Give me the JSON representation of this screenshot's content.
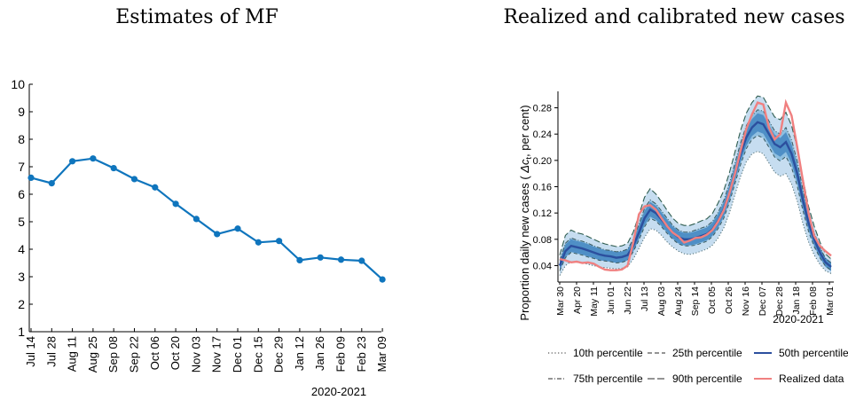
{
  "chart_data": [
    {
      "type": "line",
      "title": "Estimates of MF",
      "xlabel": "2020-2021",
      "ylabel": "",
      "categories": [
        "Jul 14",
        "Jul 28",
        "Aug 11",
        "Aug 25",
        "Sep 08",
        "Sep 22",
        "Oct 06",
        "Oct 20",
        "Nov 03",
        "Nov 17",
        "Dec 01",
        "Dec 15",
        "Dec 29",
        "Jan 12",
        "Jan 26",
        "Feb 09",
        "Feb 23",
        "Mar 09"
      ],
      "values": [
        6.6,
        6.4,
        7.2,
        7.3,
        6.95,
        6.55,
        6.25,
        5.65,
        5.1,
        4.55,
        4.75,
        4.25,
        4.3,
        3.6,
        3.7,
        3.62,
        3.58,
        2.9
      ],
      "ylim": [
        1,
        10
      ],
      "yticks": [
        1,
        2,
        3,
        4,
        5,
        6,
        7,
        8,
        9,
        10
      ],
      "grid": false,
      "color": "#0f75bd"
    },
    {
      "type": "area",
      "title": "Realized and calibrated new cases",
      "ylabel_html_prefix": "Proportion daily new cases ( ",
      "ylabel_symbol": "Δc",
      "ylabel_sub": "t",
      "ylabel_suffix": ", per cent)",
      "xlabel": "2020-2021",
      "x_ticks": [
        "Mar 30",
        "Apr 20",
        "May 11",
        "Jun 01",
        "Jun 22",
        "Jul 13",
        "Aug 03",
        "Aug 24",
        "Sep 14",
        "Oct 05",
        "Oct 26",
        "Nov 16",
        "Dec 07",
        "Dec 28",
        "Jan 18",
        "Feb 08",
        "Mar 01"
      ],
      "yticks": [
        0.04,
        0.08,
        0.12,
        0.16,
        0.2,
        0.24,
        0.28
      ],
      "ylim": [
        0.015,
        0.305
      ],
      "x_week": [
        0,
        1,
        2,
        3,
        4,
        5,
        6,
        7,
        8,
        9,
        10,
        11,
        12,
        13,
        14,
        15,
        16,
        17,
        18,
        19,
        20,
        21,
        22,
        23,
        24,
        25,
        26,
        27,
        28,
        29,
        30,
        31,
        32,
        33,
        34,
        35,
        36,
        37,
        38,
        39,
        40,
        41,
        42,
        43,
        44,
        45,
        46,
        47,
        48
      ],
      "median": [
        0.04,
        0.062,
        0.07,
        0.068,
        0.066,
        0.063,
        0.06,
        0.057,
        0.055,
        0.054,
        0.052,
        0.053,
        0.056,
        0.07,
        0.09,
        0.112,
        0.125,
        0.12,
        0.11,
        0.1,
        0.09,
        0.083,
        0.08,
        0.08,
        0.082,
        0.085,
        0.088,
        0.095,
        0.108,
        0.125,
        0.15,
        0.18,
        0.21,
        0.235,
        0.25,
        0.258,
        0.255,
        0.24,
        0.225,
        0.22,
        0.228,
        0.21,
        0.18,
        0.14,
        0.105,
        0.08,
        0.06,
        0.045,
        0.038
      ],
      "p10": [
        0.025,
        0.04,
        0.046,
        0.045,
        0.044,
        0.042,
        0.04,
        0.038,
        0.037,
        0.036,
        0.035,
        0.036,
        0.038,
        0.05,
        0.066,
        0.083,
        0.096,
        0.094,
        0.086,
        0.076,
        0.068,
        0.062,
        0.058,
        0.057,
        0.059,
        0.062,
        0.065,
        0.071,
        0.082,
        0.097,
        0.12,
        0.148,
        0.176,
        0.198,
        0.21,
        0.214,
        0.21,
        0.196,
        0.182,
        0.176,
        0.18,
        0.164,
        0.138,
        0.104,
        0.076,
        0.056,
        0.042,
        0.032,
        0.028
      ],
      "p25": [
        0.032,
        0.052,
        0.06,
        0.058,
        0.056,
        0.053,
        0.051,
        0.048,
        0.047,
        0.046,
        0.044,
        0.045,
        0.048,
        0.061,
        0.079,
        0.099,
        0.112,
        0.108,
        0.099,
        0.089,
        0.08,
        0.073,
        0.07,
        0.07,
        0.071,
        0.074,
        0.077,
        0.084,
        0.096,
        0.112,
        0.136,
        0.165,
        0.194,
        0.218,
        0.232,
        0.238,
        0.234,
        0.22,
        0.205,
        0.199,
        0.206,
        0.189,
        0.161,
        0.124,
        0.092,
        0.069,
        0.052,
        0.039,
        0.033
      ],
      "p75": [
        0.048,
        0.074,
        0.082,
        0.079,
        0.077,
        0.074,
        0.07,
        0.067,
        0.064,
        0.063,
        0.061,
        0.062,
        0.065,
        0.08,
        0.103,
        0.127,
        0.14,
        0.134,
        0.123,
        0.112,
        0.101,
        0.094,
        0.091,
        0.091,
        0.094,
        0.097,
        0.1,
        0.107,
        0.121,
        0.139,
        0.165,
        0.196,
        0.227,
        0.253,
        0.268,
        0.277,
        0.275,
        0.26,
        0.245,
        0.24,
        0.25,
        0.231,
        0.199,
        0.156,
        0.117,
        0.09,
        0.068,
        0.051,
        0.044
      ],
      "p90": [
        0.056,
        0.086,
        0.094,
        0.09,
        0.088,
        0.084,
        0.08,
        0.076,
        0.073,
        0.071,
        0.069,
        0.07,
        0.074,
        0.091,
        0.117,
        0.144,
        0.157,
        0.149,
        0.137,
        0.124,
        0.112,
        0.104,
        0.101,
        0.101,
        0.104,
        0.108,
        0.111,
        0.119,
        0.135,
        0.154,
        0.181,
        0.213,
        0.246,
        0.272,
        0.288,
        0.298,
        0.296,
        0.281,
        0.266,
        0.262,
        0.273,
        0.253,
        0.219,
        0.173,
        0.13,
        0.1,
        0.076,
        0.058,
        0.05
      ],
      "realized": [
        0.05,
        0.048,
        0.045,
        0.046,
        0.044,
        0.045,
        0.043,
        0.038,
        0.034,
        0.033,
        0.033,
        0.034,
        0.04,
        0.075,
        0.118,
        0.13,
        0.132,
        0.125,
        0.112,
        0.1,
        0.09,
        0.084,
        0.075,
        0.078,
        0.082,
        0.083,
        0.087,
        0.094,
        0.107,
        0.124,
        0.15,
        0.18,
        0.215,
        0.248,
        0.27,
        0.288,
        0.285,
        0.25,
        0.232,
        0.24,
        0.288,
        0.268,
        0.22,
        0.17,
        0.12,
        0.085,
        0.07,
        0.062,
        0.055
      ],
      "legend": [
        {
          "label": "10th percentile",
          "style": "dotted",
          "color": "#555555"
        },
        {
          "label": "25th percentile",
          "style": "dashed",
          "color": "#555555"
        },
        {
          "label": "50th percentile",
          "style": "solid",
          "color": "#2c4f9e"
        },
        {
          "label": "75th percentile",
          "style": "dashdot",
          "color": "#555555"
        },
        {
          "label": "90th percentile",
          "style": "longdash",
          "color": "#555555"
        },
        {
          "label": "Realized data",
          "style": "solid",
          "color": "#f08080"
        }
      ],
      "legend_position": "bottom",
      "colors": {
        "band_outer": "#c6ddf0",
        "band_mid": "#8fbfe0",
        "band_inner": "#4f8fc6",
        "median": "#2c4f9e",
        "realized": "#f08080",
        "p90_line": "#2f5d50"
      }
    }
  ]
}
